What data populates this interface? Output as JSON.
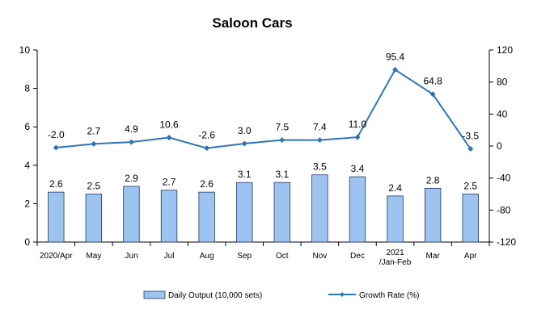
{
  "chart_data": {
    "type": "bar+line",
    "title": "Saloon Cars",
    "categories": [
      "2020/Apr",
      "May",
      "Jun",
      "Jul",
      "Aug",
      "Sep",
      "Oct",
      "Nov",
      "Dec",
      "2021\n/Jan-Feb",
      "Mar",
      "Apr"
    ],
    "series": [
      {
        "name": "Daily Output (10,000 sets)",
        "type": "bar",
        "axis": "left",
        "values": [
          2.6,
          2.5,
          2.9,
          2.7,
          2.6,
          3.1,
          3.1,
          3.5,
          3.4,
          2.4,
          2.8,
          2.5
        ],
        "labels": [
          "2.6",
          "2.5",
          "2.9",
          "2.7",
          "2.6",
          "3.1",
          "3.1",
          "3.5",
          "3.4",
          "2.4",
          "2.8",
          "2.5"
        ],
        "color": "#9DC3F0",
        "edge_color": "#1F3864"
      },
      {
        "name": "Growth Rate (%)",
        "type": "line",
        "axis": "right",
        "values": [
          -2.0,
          2.7,
          4.9,
          10.6,
          -2.6,
          3.0,
          7.5,
          7.4,
          11.0,
          95.4,
          64.8,
          -3.5
        ],
        "labels": [
          "-2.0",
          "2.7",
          "4.9",
          "10.6",
          "-2.6",
          "3.0",
          "7.5",
          "7.4",
          "11.0",
          "95.4",
          "64.8",
          "-3.5"
        ],
        "color": "#2E75B6"
      }
    ],
    "y_left": {
      "ylim": [
        0,
        10
      ],
      "ticks": [
        0,
        2,
        4,
        6,
        8,
        10
      ],
      "tick_labels": [
        "0",
        "2",
        "4",
        "6",
        "8",
        "10"
      ]
    },
    "y_right": {
      "ylim": [
        -120,
        120
      ],
      "ticks": [
        -120,
        -80,
        -40,
        0,
        40,
        80,
        120
      ],
      "tick_labels": [
        "-120",
        "-80",
        "-40",
        "0",
        "40",
        "80",
        "120"
      ]
    },
    "grid": false,
    "legend_position": "bottom"
  }
}
